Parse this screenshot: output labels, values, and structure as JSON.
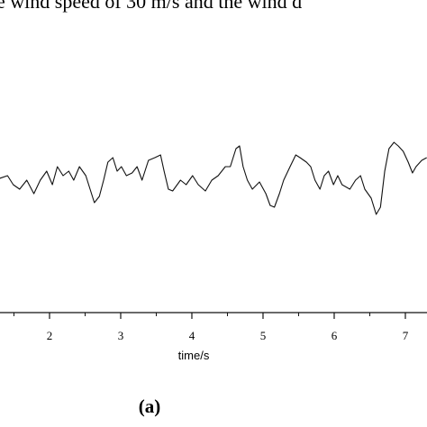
{
  "chart_data": {
    "type": "line",
    "title": "e wind speed of 30 m/s and the wind d",
    "xlabel": "time/s",
    "caption": "(a)",
    "x": [
      1.3,
      1.41,
      1.49,
      1.58,
      1.68,
      1.78,
      1.87,
      1.96,
      2.04,
      2.11,
      2.19,
      2.27,
      2.34,
      2.42,
      2.51,
      2.57,
      2.63,
      2.7,
      2.76,
      2.82,
      2.89,
      2.95,
      3.01,
      3.08,
      3.16,
      3.23,
      3.3,
      3.39,
      3.48,
      3.56,
      3.61,
      3.67,
      3.73,
      3.84,
      3.92,
      4.01,
      4.09,
      4.19,
      4.28,
      4.37,
      4.47,
      4.54,
      4.62,
      4.67,
      4.72,
      4.78,
      4.85,
      4.95,
      5.04,
      5.1,
      5.16,
      5.23,
      5.29,
      5.38,
      5.46,
      5.52,
      5.61,
      5.67,
      5.73,
      5.8,
      5.86,
      5.92,
      5.99,
      6.05,
      6.11,
      6.22,
      6.3,
      6.37,
      6.43,
      6.52,
      6.59,
      6.65,
      6.71,
      6.77,
      6.84,
      6.9,
      6.97,
      7.04,
      7.1,
      7.15,
      7.23,
      7.3
    ],
    "series": [
      {
        "color": "#111111",
        "values": [
          149,
          152,
          142,
          137,
          147,
          132,
          147,
          157,
          142,
          162,
          152,
          157,
          147,
          162,
          152,
          137,
          122,
          129,
          147,
          167,
          172,
          157,
          162,
          152,
          155,
          162,
          147,
          169,
          172,
          175,
          157,
          137,
          135,
          147,
          142,
          152,
          142,
          135,
          147,
          152,
          162,
          162,
          182,
          185,
          162,
          147,
          137,
          145,
          132,
          119,
          117,
          132,
          147,
          162,
          175,
          172,
          167,
          162,
          147,
          137,
          152,
          157,
          142,
          152,
          142,
          137,
          147,
          152,
          137,
          127,
          109,
          117,
          157,
          182,
          189,
          185,
          179,
          167,
          155,
          162,
          169,
          172
        ]
      }
    ],
    "xlim": [
      1.304,
      7.304
    ],
    "ylim": [
      0,
      347
    ],
    "xticks": [
      2,
      3,
      4,
      5,
      6,
      7
    ],
    "xminorticks": [
      1.5,
      2.5,
      3.5,
      4.5,
      5.5,
      6.5
    ]
  }
}
